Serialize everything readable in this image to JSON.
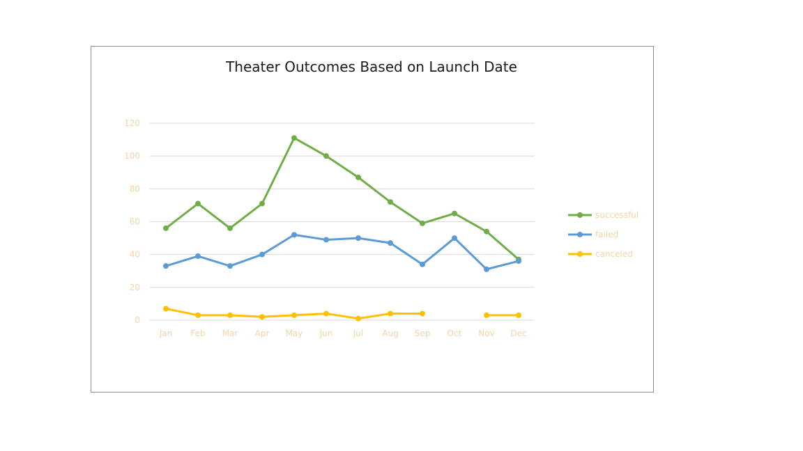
{
  "chart_data": {
    "type": "line",
    "title": "Theater Outcomes Based on Launch Date",
    "xlabel": "",
    "ylabel": "",
    "categories": [
      "Jan",
      "Feb",
      "Mar",
      "Apr",
      "May",
      "Jun",
      "Jul",
      "Aug",
      "Sep",
      "Oct",
      "Nov",
      "Dec"
    ],
    "ylim": [
      0,
      120
    ],
    "yticks": [
      "0",
      "20",
      "40",
      "60",
      "80",
      "100",
      "120"
    ],
    "grid": true,
    "legend": "right",
    "series": [
      {
        "name": "successful",
        "color": "#70ad47",
        "values": [
          56,
          71,
          56,
          71,
          111,
          100,
          87,
          72,
          59,
          65,
          54,
          37
        ]
      },
      {
        "name": "failed",
        "color": "#5b9bd5",
        "values": [
          33,
          39,
          33,
          40,
          52,
          49,
          50,
          47,
          34,
          50,
          31,
          36
        ]
      },
      {
        "name": "canceled",
        "color": "#ffc000",
        "values": [
          7,
          3,
          3,
          2,
          3,
          4,
          1,
          4,
          4,
          null,
          3,
          3
        ]
      }
    ]
  }
}
